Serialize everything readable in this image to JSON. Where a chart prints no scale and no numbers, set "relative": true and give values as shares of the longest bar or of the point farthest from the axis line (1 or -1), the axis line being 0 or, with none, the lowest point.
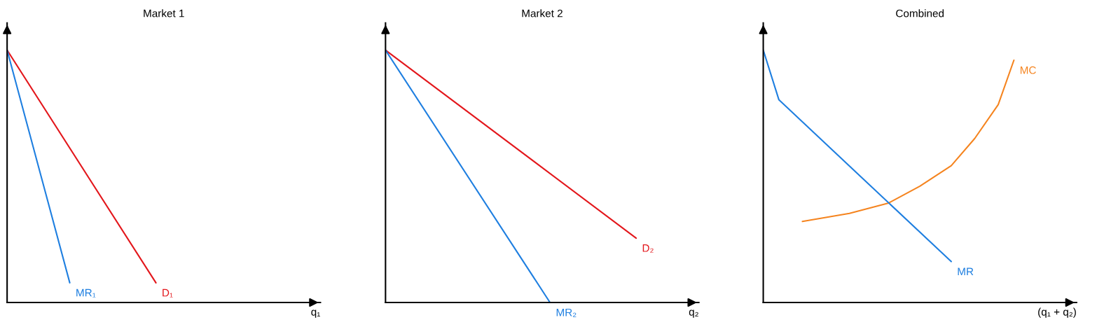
{
  "chart_data": [
    {
      "type": "line",
      "title": "Market 1",
      "xlabel": "q₁",
      "relative": true,
      "categories": [
        null,
        null,
        null,
        null,
        null,
        null,
        null,
        null,
        null,
        null,
        null,
        null,
        null,
        null,
        null,
        null,
        null,
        null,
        null,
        null,
        null,
        null,
        null,
        null,
        null,
        null,
        null,
        null,
        null,
        null,
        null,
        null,
        null,
        null,
        null,
        null,
        null,
        null,
        null,
        null,
        null
      ],
      "series": [
        {
          "name": "D₁",
          "color": "#e3171c",
          "values": [
            1,
            null,
            null,
            null,
            null,
            null,
            null,
            null,
            null,
            null,
            null,
            null,
            null,
            null,
            null,
            null,
            null,
            null,
            null,
            0.078,
            null,
            null,
            null,
            null,
            null,
            null,
            null,
            null,
            null,
            null,
            null,
            null,
            null,
            null,
            null,
            null,
            null,
            null,
            null,
            null,
            null
          ]
        },
        {
          "name": "MR₁",
          "color": "#1f7fe0",
          "values": [
            1,
            null,
            null,
            null,
            null,
            null,
            null,
            null,
            0.078,
            null,
            null,
            null,
            null,
            null,
            null,
            null,
            null,
            null,
            null,
            null,
            null,
            null,
            null,
            null,
            null,
            null,
            null,
            null,
            null,
            null,
            null,
            null,
            null,
            null,
            null,
            null,
            null,
            null,
            null,
            null,
            null
          ]
        }
      ]
    },
    {
      "type": "line",
      "title": "Market 2",
      "xlabel": "q₂",
      "relative": true,
      "categories": [
        null,
        null,
        null,
        null,
        null,
        null,
        null,
        null,
        null,
        null,
        null,
        null,
        null,
        null,
        null,
        null,
        null,
        null,
        null,
        null,
        null,
        null,
        null,
        null,
        null,
        null,
        null,
        null,
        null,
        null,
        null,
        null,
        null,
        null,
        null,
        null,
        null,
        null,
        null,
        null,
        null
      ],
      "series": [
        {
          "name": "D₂",
          "color": "#e3171c",
          "values": [
            1,
            null,
            null,
            null,
            null,
            null,
            null,
            null,
            null,
            null,
            null,
            null,
            null,
            null,
            null,
            null,
            null,
            null,
            null,
            null,
            null,
            null,
            null,
            null,
            null,
            null,
            null,
            null,
            null,
            null,
            null,
            null,
            0.255,
            null,
            null,
            null,
            null,
            null,
            null,
            null,
            null
          ]
        },
        {
          "name": "MR₂",
          "color": "#1f7fe0",
          "values": [
            1,
            null,
            null,
            null,
            null,
            null,
            null,
            null,
            null,
            null,
            null,
            null,
            null,
            null,
            null,
            null,
            null,
            null,
            null,
            null,
            null,
            0,
            null,
            null,
            null,
            null,
            null,
            null,
            null,
            null,
            null,
            null,
            null,
            null,
            null,
            null,
            null,
            null,
            null,
            null,
            null
          ]
        }
      ]
    },
    {
      "type": "line",
      "title": "Combined",
      "xlabel": "(q₁ + q₂)",
      "relative": true,
      "categories": [
        null,
        null,
        null,
        null,
        null,
        null,
        null,
        null,
        null,
        null,
        null,
        null,
        null,
        null,
        null,
        null,
        null,
        null,
        null,
        null,
        null,
        null,
        null,
        null,
        null,
        null,
        null,
        null,
        null,
        null,
        null,
        null,
        null,
        null,
        null,
        null,
        null,
        null,
        null,
        null,
        null
      ],
      "series": [
        {
          "name": "MC",
          "color": "#f5841f",
          "values": [
            null,
            null,
            null,
            null,
            null,
            0.321,
            null,
            null,
            null,
            null,
            null,
            0.353,
            null,
            null,
            null,
            null,
            0.394,
            null,
            null,
            null,
            0.461,
            null,
            null,
            null,
            0.542,
            null,
            null,
            0.65,
            null,
            null,
            0.784,
            null,
            0.96,
            null,
            null,
            null,
            null,
            null,
            null,
            null,
            null
          ]
        },
        {
          "name": "MR",
          "color": "#1f7fe0",
          "values": [
            1,
            null,
            0.803,
            null,
            null,
            null,
            null,
            null,
            null,
            null,
            null,
            null,
            null,
            null,
            null,
            null,
            null,
            null,
            null,
            null,
            null,
            null,
            null,
            null,
            0.162,
            null,
            null,
            null,
            null,
            null,
            null,
            null,
            null,
            null,
            null,
            null,
            null,
            null,
            null,
            null,
            null
          ]
        }
      ]
    }
  ]
}
